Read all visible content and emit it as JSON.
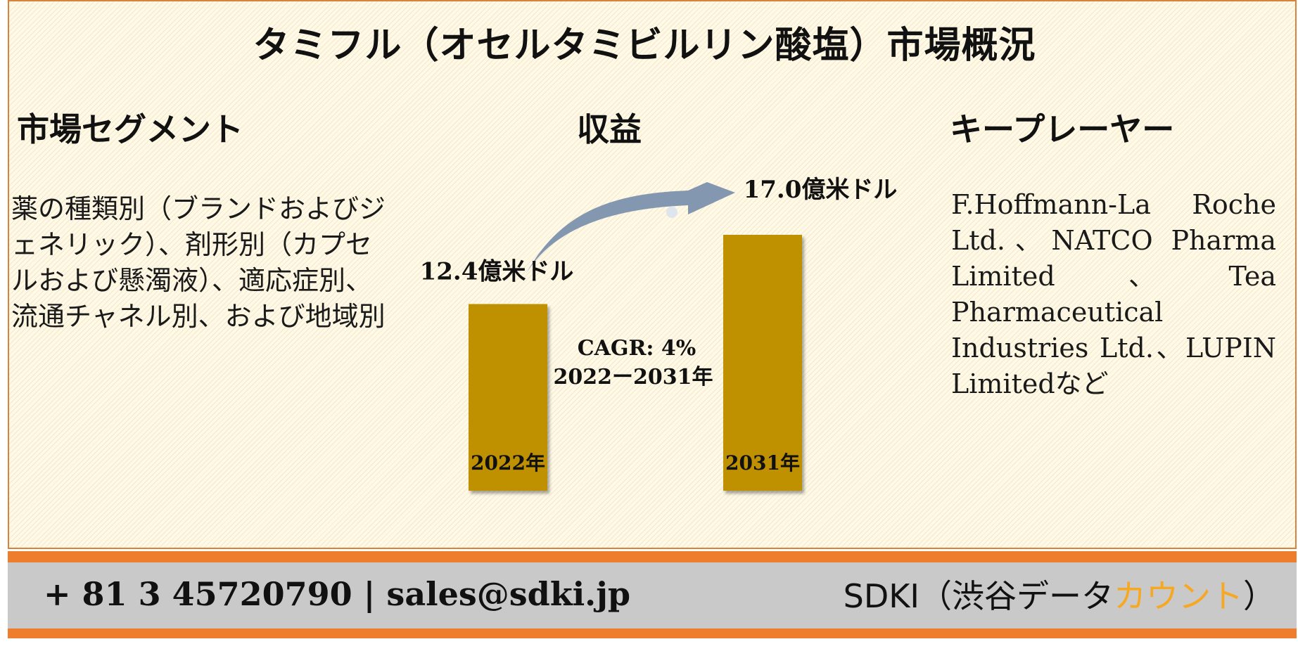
{
  "title": "タミフル（オセルタミビルリン酸塩）市場概況",
  "sections": {
    "segment_heading": "市場セグメント",
    "revenue_heading": "収益",
    "players_heading": "キープレーヤー"
  },
  "segment_text": "薬の種類別（ブランドおよびジェネリック）、剤形別（カプセルおよび懸濁液）、適応症別、流通チャネル別、および地域別",
  "players_text": "F.Hoffmann-La Roche Ltd.、NATCO Pharma Limited、Tea Pharmaceutical Industries Ltd.、LUPIN Limitedなど",
  "chart_data": {
    "type": "bar",
    "categories": [
      "2022年",
      "2031年"
    ],
    "values": [
      12.4,
      17.0
    ],
    "value_labels": [
      "12.4億米ドル",
      "17.0億米ドル"
    ],
    "ylim": [
      0,
      17.0
    ],
    "cagr_label": "CAGR: 4%",
    "period_label": "2022ー2031年",
    "bar_color": "#bf9000",
    "arrow_color": "#8497b0"
  },
  "footer": {
    "contact": "+ 81 3 45720790 | sales@sdki.jp",
    "brand_prefix": "SDKI（渋谷データ",
    "brand_accent": "カウント",
    "brand_suffix": "）",
    "accent_color": "#f7a823",
    "band_color": "#ee7d2d"
  }
}
